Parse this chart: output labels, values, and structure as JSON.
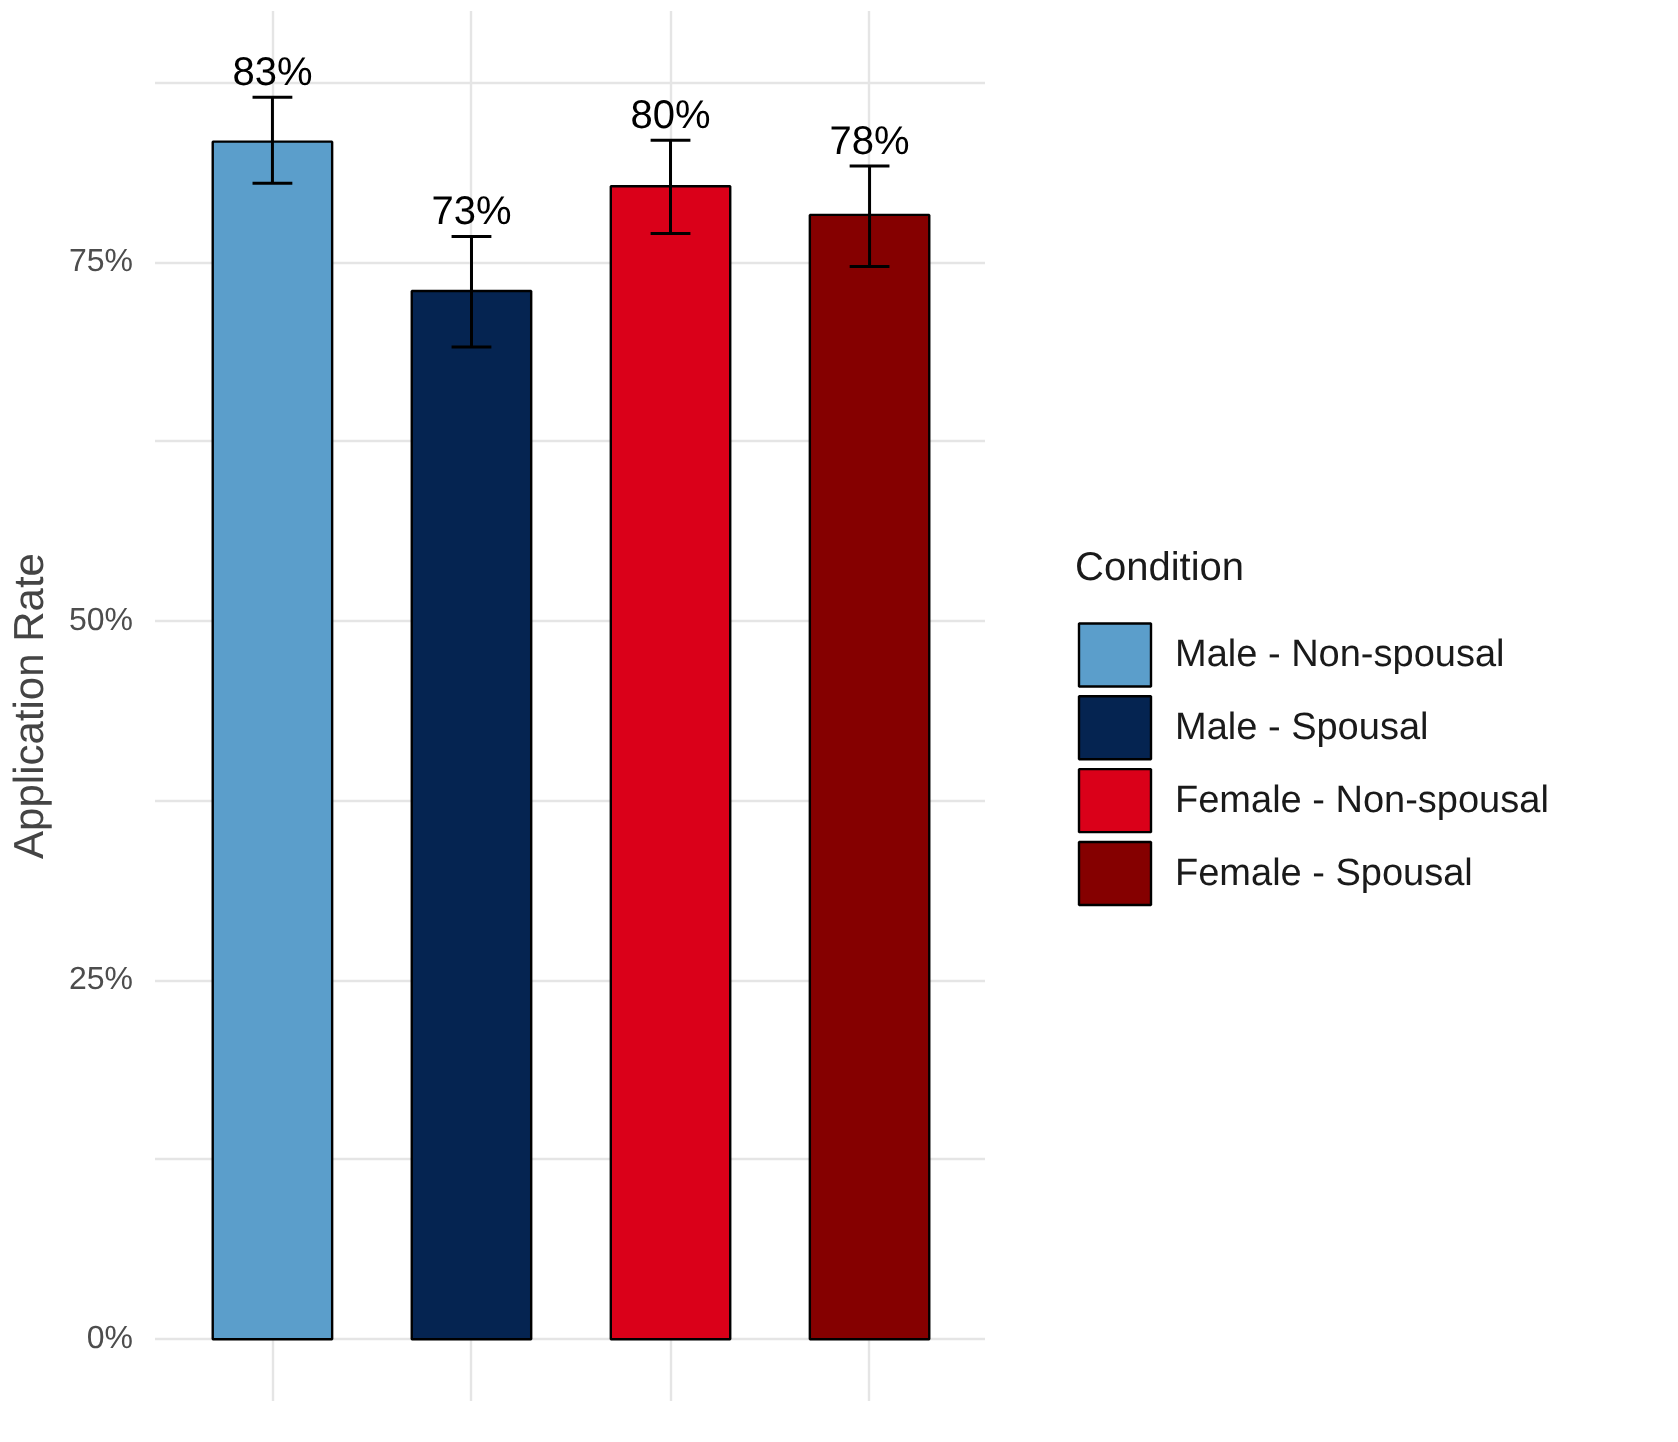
{
  "chart_data": {
    "type": "bar",
    "ylabel": "Application Rate",
    "legend_title": "Condition",
    "legend": "right",
    "grid": true,
    "categories": [
      null,
      null,
      null,
      null
    ],
    "ylim": [
      -4.3,
      92.5
    ],
    "yticks": [
      {
        "value": 0,
        "label": "0%"
      },
      {
        "value": 12.5,
        "label": null
      },
      {
        "value": 25,
        "label": "25%"
      },
      {
        "value": 37.5,
        "label": null
      },
      {
        "value": 50,
        "label": "50%"
      },
      {
        "value": 62.5,
        "label": null
      },
      {
        "value": 75,
        "label": "75%"
      },
      {
        "value": 87.5,
        "label": null
      }
    ],
    "series": [
      {
        "name": "Male - Non-spousal",
        "color": "#5b9ecb",
        "values": [
          83.4,
          null,
          null,
          null
        ],
        "errors": [
          [
            80.5,
            86.5
          ],
          null,
          null,
          null
        ],
        "value_labels": [
          "83%",
          null,
          null,
          null
        ]
      },
      {
        "name": "Male - Spousal",
        "color": "#052451",
        "values": [
          null,
          73.0,
          null,
          null
        ],
        "errors": [
          null,
          [
            69.1,
            76.8
          ],
          null,
          null
        ],
        "value_labels": [
          null,
          "73%",
          null,
          null
        ]
      },
      {
        "name": "Female - Non-spousal",
        "color": "#da0019",
        "values": [
          null,
          null,
          80.3,
          null
        ],
        "errors": [
          null,
          null,
          [
            77.0,
            83.5
          ],
          null
        ],
        "value_labels": [
          null,
          null,
          "80%",
          null
        ]
      },
      {
        "name": "Female - Spousal",
        "color": "#850000",
        "values": [
          null,
          null,
          null,
          78.3
        ],
        "errors": [
          null,
          null,
          null,
          [
            74.7,
            81.7
          ]
        ],
        "value_labels": [
          null,
          null,
          null,
          "78%"
        ]
      }
    ]
  }
}
